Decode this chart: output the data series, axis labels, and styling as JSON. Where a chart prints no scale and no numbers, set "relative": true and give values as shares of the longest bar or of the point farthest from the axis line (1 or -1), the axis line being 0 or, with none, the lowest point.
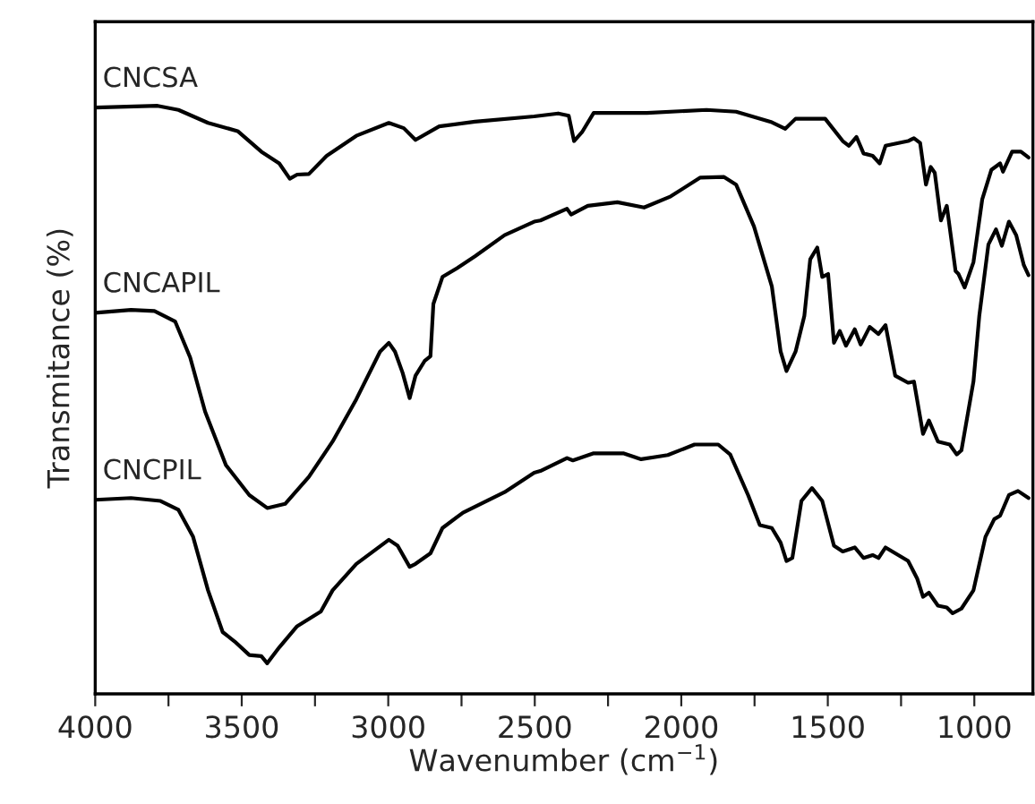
{
  "chart_data": {
    "type": "line",
    "relative": true,
    "xlabel": "Wavenumber (cm$^{−1}$)",
    "ylabel": "Transmitance (%)",
    "xlim": [
      4000,
      800
    ],
    "xticks": [
      4000,
      {
        "value": 3750,
        "label": null
      },
      3500,
      {
        "value": 3250,
        "label": null
      },
      3000,
      {
        "value": 2750,
        "label": null
      },
      2500,
      {
        "value": 2250,
        "label": null
      },
      2000,
      {
        "value": 1750,
        "label": null
      },
      1500,
      {
        "value": 1250,
        "label": null
      },
      1000
    ],
    "tick_labels": "x",
    "grid": false,
    "legend": false,
    "marker": "none",
    "line_style": "solid",
    "series": [
      {
        "name": "CNCSA",
        "color": "#000000",
        "x": [
          4000,
          3787,
          3716,
          3615,
          3514,
          3433,
          3372,
          3336,
          3311,
          3271,
          3210,
          3109,
          2998,
          2947,
          2907,
          2826,
          2704,
          2502,
          2420,
          2384,
          2366,
          2339,
          2299,
          2117,
          1914,
          1813,
          1691,
          1645,
          1610,
          1509,
          1449,
          1428,
          1402,
          1378,
          1347,
          1323,
          1303,
          1226,
          1206,
          1185,
          1165,
          1149,
          1135,
          1114,
          1094,
          1064,
          1054,
          1033,
          1003,
          973,
          942,
          912,
          902,
          871,
          841,
          815
        ],
        "values": [
          0.997,
          1.0,
          0.993,
          0.971,
          0.957,
          0.922,
          0.902,
          0.876,
          0.883,
          0.884,
          0.915,
          0.949,
          0.971,
          0.962,
          0.942,
          0.965,
          0.973,
          0.982,
          0.987,
          0.983,
          0.94,
          0.955,
          0.988,
          0.988,
          0.993,
          0.99,
          0.972,
          0.961,
          0.978,
          0.978,
          0.94,
          0.932,
          0.947,
          0.919,
          0.915,
          0.902,
          0.932,
          0.94,
          0.945,
          0.937,
          0.866,
          0.896,
          0.886,
          0.805,
          0.83,
          0.719,
          0.714,
          0.691,
          0.734,
          0.841,
          0.891,
          0.902,
          0.888,
          0.922,
          0.922,
          0.912
        ]
      },
      {
        "name": "CNCAPIL",
        "color": "#000000",
        "x": [
          4000,
          3878,
          3798,
          3727,
          3676,
          3625,
          3554,
          3474,
          3413,
          3352,
          3271,
          3190,
          3109,
          3028,
          2998,
          2977,
          2951,
          2927,
          2907,
          2876,
          2856,
          2846,
          2815,
          2765,
          2704,
          2603,
          2502,
          2481,
          2390,
          2376,
          2319,
          2218,
          2127,
          2036,
          1935,
          1854,
          1813,
          1752,
          1691,
          1661,
          1641,
          1610,
          1580,
          1560,
          1536,
          1519,
          1499,
          1479,
          1459,
          1438,
          1408,
          1388,
          1357,
          1327,
          1303,
          1270,
          1226,
          1206,
          1175,
          1155,
          1124,
          1084,
          1060,
          1044,
          1003,
          983,
          952,
          926,
          906,
          882,
          857,
          831,
          815
        ],
        "values": [
          0.648,
          0.653,
          0.651,
          0.633,
          0.572,
          0.48,
          0.389,
          0.338,
          0.316,
          0.323,
          0.369,
          0.429,
          0.501,
          0.582,
          0.597,
          0.582,
          0.546,
          0.503,
          0.541,
          0.566,
          0.574,
          0.663,
          0.709,
          0.724,
          0.744,
          0.78,
          0.803,
          0.805,
          0.825,
          0.815,
          0.83,
          0.836,
          0.827,
          0.846,
          0.878,
          0.879,
          0.866,
          0.795,
          0.693,
          0.582,
          0.549,
          0.582,
          0.643,
          0.739,
          0.759,
          0.709,
          0.714,
          0.597,
          0.617,
          0.592,
          0.62,
          0.594,
          0.624,
          0.612,
          0.627,
          0.541,
          0.529,
          0.531,
          0.442,
          0.465,
          0.429,
          0.424,
          0.407,
          0.414,
          0.531,
          0.643,
          0.764,
          0.79,
          0.762,
          0.803,
          0.78,
          0.729,
          0.712
        ]
      },
      {
        "name": "CNCPIL",
        "color": "#000000",
        "x": [
          4000,
          3878,
          3777,
          3716,
          3666,
          3615,
          3565,
          3524,
          3474,
          3433,
          3413,
          3372,
          3311,
          3230,
          3190,
          3109,
          2998,
          2968,
          2927,
          2907,
          2856,
          2815,
          2745,
          2603,
          2502,
          2481,
          2390,
          2370,
          2299,
          2198,
          2137,
          2046,
          1955,
          1874,
          1833,
          1772,
          1732,
          1691,
          1661,
          1641,
          1621,
          1590,
          1554,
          1519,
          1479,
          1449,
          1408,
          1378,
          1347,
          1327,
          1303,
          1226,
          1195,
          1175,
          1155,
          1124,
          1094,
          1074,
          1044,
          1003,
          962,
          932,
          912,
          882,
          851,
          815
        ],
        "values": [
          0.33,
          0.333,
          0.328,
          0.313,
          0.267,
          0.176,
          0.105,
          0.089,
          0.066,
          0.064,
          0.052,
          0.079,
          0.115,
          0.14,
          0.176,
          0.221,
          0.262,
          0.252,
          0.216,
          0.221,
          0.239,
          0.282,
          0.308,
          0.343,
          0.376,
          0.379,
          0.401,
          0.397,
          0.409,
          0.409,
          0.399,
          0.406,
          0.424,
          0.424,
          0.407,
          0.338,
          0.287,
          0.282,
          0.257,
          0.226,
          0.231,
          0.328,
          0.35,
          0.328,
          0.252,
          0.242,
          0.249,
          0.231,
          0.236,
          0.231,
          0.249,
          0.226,
          0.196,
          0.165,
          0.172,
          0.15,
          0.147,
          0.137,
          0.145,
          0.176,
          0.267,
          0.297,
          0.303,
          0.338,
          0.345,
          0.333
        ]
      }
    ]
  }
}
